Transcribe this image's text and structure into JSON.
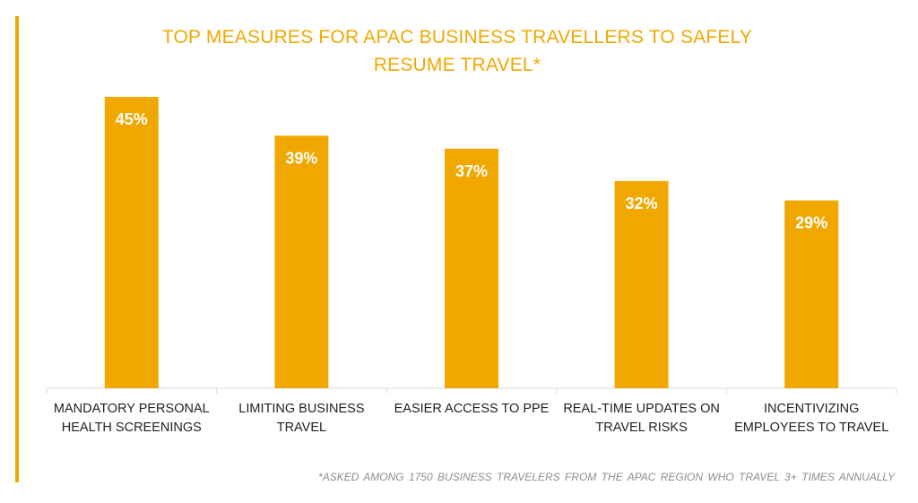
{
  "accent_color": "#F0A800",
  "chart_data": {
    "type": "bar",
    "title_lines": [
      "TOP MEASURES FOR APAC BUSINESS TRAVELLERS TO SAFELY",
      "RESUME TRAVEL*"
    ],
    "categories": [
      [
        "MANDATORY PERSONAL",
        "HEALTH SCREENINGS"
      ],
      [
        "LIMITING BUSINESS",
        "TRAVEL"
      ],
      [
        "EASIER ACCESS TO PPE"
      ],
      [
        "REAL-TIME UPDATES ON",
        "TRAVEL RISKS"
      ],
      [
        "INCENTIVIZING",
        "EMPLOYEES TO TRAVEL"
      ]
    ],
    "values": [
      45,
      39,
      37,
      32,
      29
    ],
    "value_labels": [
      "45%",
      "39%",
      "37%",
      "32%",
      "29%"
    ],
    "ylim": [
      0,
      45
    ],
    "grid": false,
    "bar_color": "#F0A800",
    "footnote": "*ASKED AMONG 1750 BUSINESS TRAVELERS FROM THE APAC REGION WHO TRAVEL 3+ TIMES ANNUALLY"
  }
}
